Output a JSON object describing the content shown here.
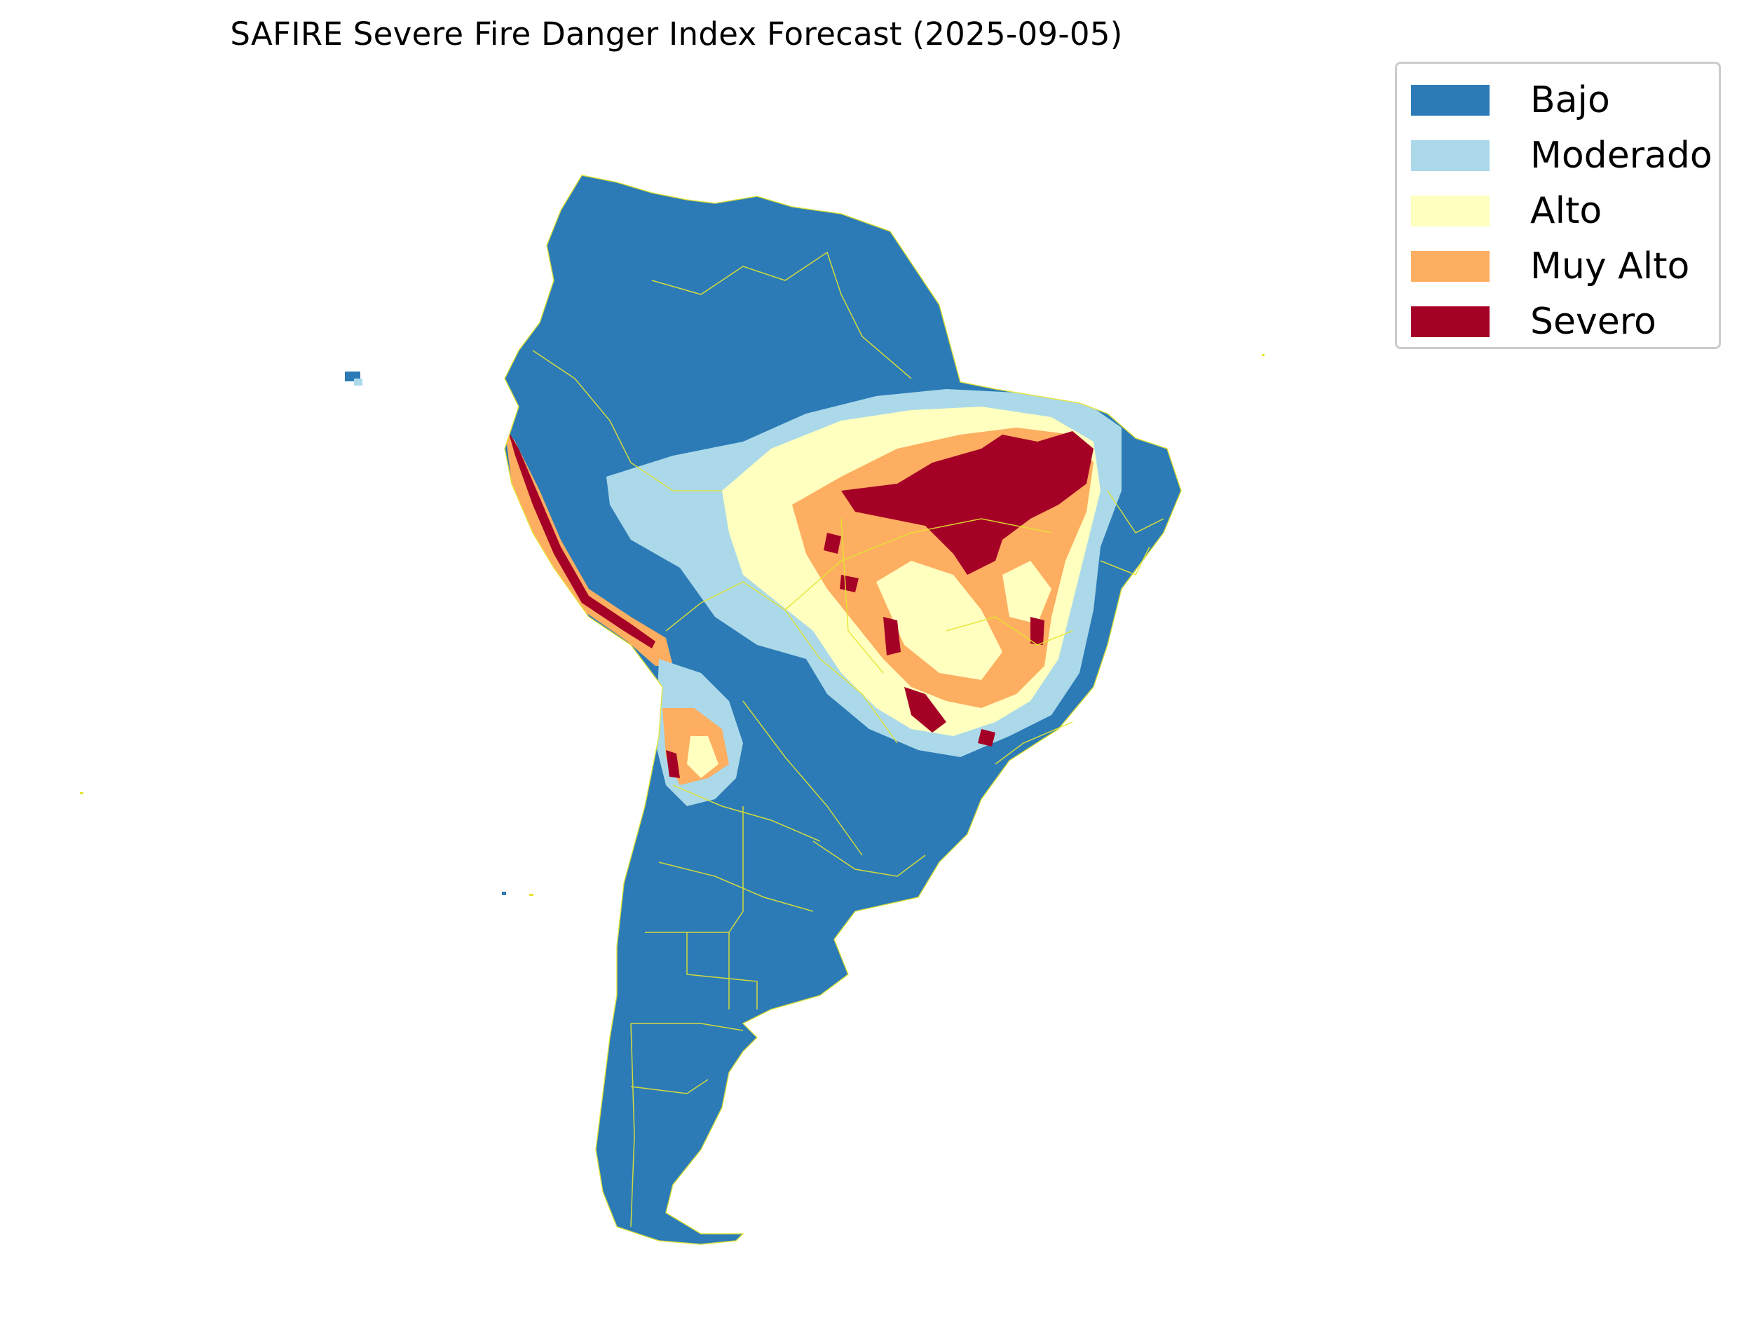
{
  "title": "SAFIRE Severe Fire Danger Index Forecast (2025-09-05)",
  "legend": {
    "items": [
      {
        "label": "Bajo",
        "color": "#2c7bb6"
      },
      {
        "label": "Moderado",
        "color": "#abd9e9"
      },
      {
        "label": "Alto",
        "color": "#ffffbf"
      },
      {
        "label": "Muy Alto",
        "color": "#fdae61"
      },
      {
        "label": "Severo",
        "color": "#a50026"
      }
    ]
  },
  "colors": {
    "border_lines": "#e5e530",
    "background": "#ffffff"
  },
  "map": {
    "region": "South America",
    "classes": [
      "Bajo",
      "Moderado",
      "Alto",
      "Muy Alto",
      "Severo"
    ]
  }
}
